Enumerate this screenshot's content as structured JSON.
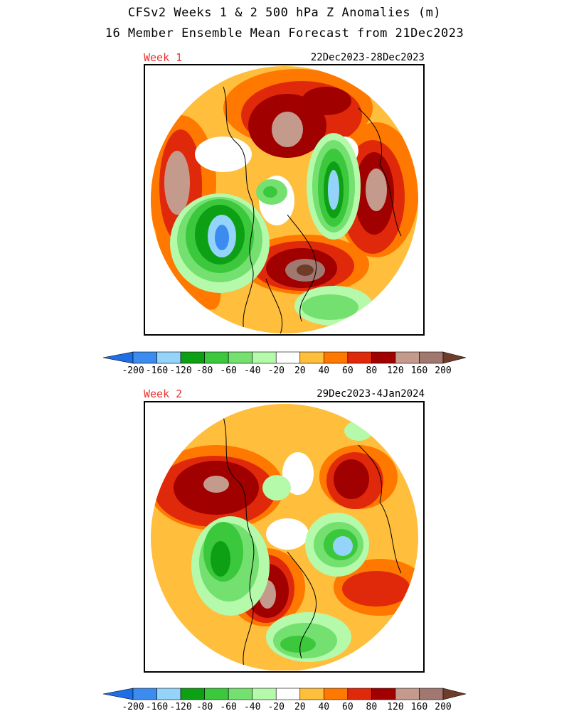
{
  "title": {
    "line1": "CFSv2 Weeks 1 & 2 500 hPa Z Anomalies (m)",
    "line2": "16 Member Ensemble Mean Forecast from 21Dec2023"
  },
  "panels": [
    {
      "label": "Week 1",
      "dates": "22Dec2023-28Dec2023"
    },
    {
      "label": "Week 2",
      "dates": "29Dec2023-4Jan2024"
    }
  ],
  "colorbar": {
    "labels": [
      "-200",
      "-160",
      "-120",
      "-80",
      "-60",
      "-40",
      "-20",
      "20",
      "40",
      "60",
      "80",
      "120",
      "160",
      "200"
    ],
    "colors": [
      "#1e6ee8",
      "#3c8cf0",
      "#94d4fa",
      "#0ea014",
      "#3cc83c",
      "#74e070",
      "#b4faaa",
      "#ffffff",
      "#ffbe3c",
      "#ff7800",
      "#e0280a",
      "#a00000",
      "#c49a8c",
      "#a07870",
      "#6e3c28"
    ]
  }
}
